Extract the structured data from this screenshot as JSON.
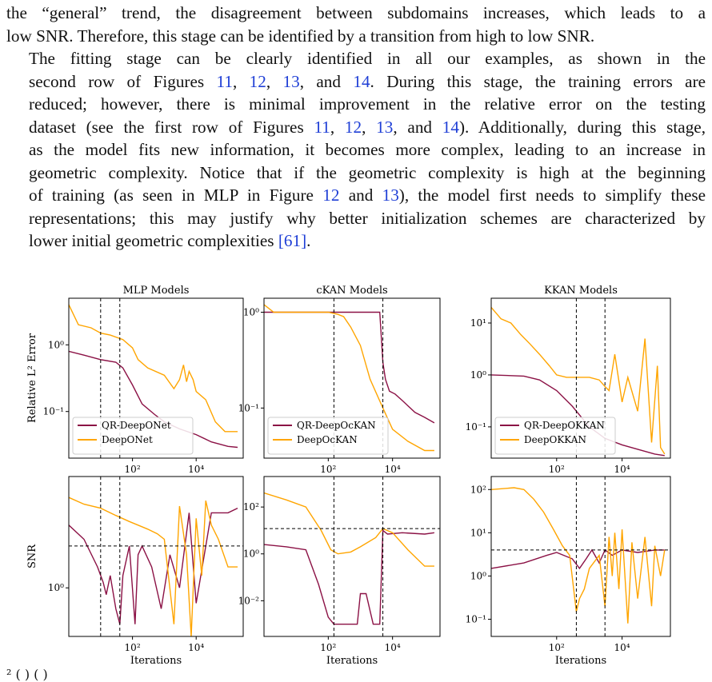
{
  "paragraph1": {
    "lines": [
      "the “general” trend, the disagreement between subdomains increases, which leads to a",
      "low SNR. Therefore, this stage can be identified by a transition from high to low SNR."
    ]
  },
  "paragraph2": {
    "l1": "The fitting stage can be clearly identified in all our examples, as shown in the",
    "l2a": "second row of Figures ",
    "r1": "11",
    "c1": ", ",
    "r2": "12",
    "c2": ", ",
    "r3": "13",
    "c3": ", and ",
    "r4": "14",
    "l2b": ". During this stage, the training errors are",
    "l3": "reduced; however, there is minimal improvement in the relative error on the testing",
    "l4a": "dataset (see the first row of Figures ",
    "r5": "11",
    "c4": ", ",
    "r6": "12",
    "c5": ", ",
    "r7": "13",
    "c6": ", and ",
    "r8": "14",
    "l4b": "). Additionally, during this stage,",
    "l5": "as the model fits new information, it becomes more complex, leading to an increase in",
    "l6": "geometric complexity. Notice that if the geometric complexity is high at the beginning",
    "l7a": "of training (as seen in MLP in Figure ",
    "r9": "12",
    "c7": " and  ",
    "r10": "13",
    "l7b": "), the model first needs to simplify these",
    "l8": "representations; this may justify why better initialization schemes are characterized by",
    "l9a": "lower initial geometric complexities ",
    "r11": "[61]",
    "l9b": "."
  },
  "caption": {
    "fragment": "²  (  )  (  )"
  },
  "colors": {
    "qr": "#8b1145",
    "plain": "#ffa500",
    "dash": "#000000"
  },
  "chart_data": [
    {
      "type": "line",
      "title": "MLP Models",
      "ylabel": "Relative L² Error",
      "xlabel": "",
      "xscale": "log",
      "yscale": "log",
      "xlim": [
        1,
        300000
      ],
      "ylim": [
        0.02,
        5
      ],
      "xticks": [
        "10²",
        "10⁴"
      ],
      "xtick_values": [
        100,
        10000
      ],
      "yticks": [
        "10⁰",
        "10⁻¹"
      ],
      "ytick_values": [
        1,
        0.1
      ],
      "vlines": [
        10,
        40
      ],
      "legend": "lower-left",
      "series": [
        {
          "name": "QR-DeepONet",
          "color": "#8b1145",
          "x": [
            1,
            3,
            10,
            30,
            50,
            100,
            200,
            500,
            1000,
            3000,
            10000,
            30000,
            100000,
            200000
          ],
          "y": [
            0.8,
            0.7,
            0.6,
            0.55,
            0.45,
            0.25,
            0.13,
            0.09,
            0.07,
            0.055,
            0.045,
            0.035,
            0.03,
            0.029
          ]
        },
        {
          "name": "DeepONet",
          "color": "#ffa500",
          "x": [
            1,
            2,
            5,
            10,
            20,
            50,
            100,
            150,
            300,
            1000,
            2000,
            3000,
            4000,
            5000,
            6000,
            8000,
            10000,
            20000,
            40000,
            80000,
            200000
          ],
          "y": [
            4,
            2,
            1.8,
            1.5,
            1.4,
            1.2,
            0.9,
            0.6,
            0.45,
            0.35,
            0.22,
            0.3,
            0.5,
            0.28,
            0.4,
            0.3,
            0.2,
            0.15,
            0.07,
            0.05,
            0.05
          ]
        }
      ]
    },
    {
      "type": "line",
      "title": "cKAN Models",
      "ylabel": "",
      "xlabel": "",
      "xscale": "log",
      "yscale": "log",
      "xlim": [
        1,
        300000
      ],
      "ylim": [
        0.03,
        1.4
      ],
      "xticks": [
        "10²",
        "10⁴"
      ],
      "xtick_values": [
        100,
        10000
      ],
      "yticks": [
        "10⁰",
        "10⁻¹"
      ],
      "ytick_values": [
        1,
        0.1
      ],
      "vlines": [
        150,
        5000
      ],
      "legend": "lower-left",
      "series": [
        {
          "name": "QR-DeepOcKAN",
          "color": "#8b1145",
          "x": [
            1,
            10,
            100,
            1000,
            4000,
            5000,
            6000,
            8000,
            12000,
            20000,
            50000,
            100000,
            200000
          ],
          "y": [
            1,
            1,
            1,
            1,
            1,
            0.3,
            0.2,
            0.15,
            0.14,
            0.12,
            0.09,
            0.08,
            0.07
          ]
        },
        {
          "name": "DeepOcKAN",
          "color": "#ffa500",
          "x": [
            1,
            2,
            5,
            20,
            100,
            200,
            300,
            500,
            1000,
            2000,
            5000,
            10000,
            30000,
            100000,
            200000
          ],
          "y": [
            1.2,
            1.0,
            1.0,
            1.0,
            1.0,
            0.95,
            0.9,
            0.7,
            0.45,
            0.2,
            0.1,
            0.06,
            0.045,
            0.036,
            0.036
          ]
        }
      ]
    },
    {
      "type": "line",
      "title": "KKAN Models",
      "ylabel": "",
      "xlabel": "",
      "xscale": "log",
      "yscale": "log",
      "xlim": [
        1,
        300000
      ],
      "ylim": [
        0.025,
        30
      ],
      "xticks": [
        "10²",
        "10⁴"
      ],
      "xtick_values": [
        100,
        10000
      ],
      "yticks": [
        "10¹",
        "10⁰",
        "10⁻¹"
      ],
      "ytick_values": [
        10,
        1,
        0.1
      ],
      "vlines": [
        400,
        3000
      ],
      "legend": "lower-left",
      "series": [
        {
          "name": "QR-DeepOKKAN",
          "color": "#8b1145",
          "x": [
            1,
            10,
            30,
            100,
            300,
            1000,
            3000,
            10000,
            30000,
            100000,
            200000
          ],
          "y": [
            1,
            0.95,
            0.8,
            0.5,
            0.25,
            0.1,
            0.06,
            0.045,
            0.037,
            0.03,
            0.028
          ]
        },
        {
          "name": "DeepOKKAN",
          "color": "#ffa500",
          "x": [
            1,
            2,
            4,
            8,
            15,
            30,
            60,
            100,
            200,
            400,
            1000,
            2000,
            3000,
            4000,
            6000,
            10000,
            15000,
            30000,
            50000,
            80000,
            120000,
            150000,
            200000
          ],
          "y": [
            20,
            12,
            10,
            6,
            4,
            2.5,
            1.5,
            1.0,
            0.9,
            0.9,
            0.9,
            0.8,
            0.6,
            0.5,
            2.5,
            0.3,
            0.9,
            0.2,
            5,
            0.05,
            1.5,
            0.04,
            0.03
          ]
        }
      ]
    },
    {
      "type": "line",
      "title": "",
      "ylabel": "SNR",
      "xlabel": "Iterations",
      "xscale": "log",
      "yscale": "log",
      "xlim": [
        1,
        300000
      ],
      "ylim": [
        0.2,
        40
      ],
      "xticks": [
        "10²",
        "10⁴"
      ],
      "xtick_values": [
        100,
        10000
      ],
      "yticks": [
        "10⁰"
      ],
      "ytick_values": [
        1
      ],
      "vlines": [
        10,
        40
      ],
      "hlines": [
        4
      ],
      "series": [
        {
          "name": "",
          "color": "#8b1145",
          "x": [
            1,
            3,
            8,
            12,
            15,
            20,
            30,
            40,
            50,
            80,
            120,
            150,
            200,
            400,
            800,
            1500,
            3000,
            6000,
            10000,
            30000,
            100000,
            200000
          ],
          "y": [
            8,
            5,
            2,
            1.2,
            0.8,
            1.5,
            0.5,
            0.3,
            1.5,
            4,
            0.3,
            3,
            4,
            2,
            0.5,
            3,
            1,
            12,
            0.6,
            12,
            12,
            14
          ]
        },
        {
          "name": "",
          "color": "#ffa500",
          "x": [
            1,
            3,
            10,
            30,
            80,
            150,
            300,
            600,
            1000,
            2000,
            3000,
            5000,
            7000,
            10000,
            15000,
            20000,
            30000,
            50000,
            100000,
            200000
          ],
          "y": [
            20,
            16,
            14,
            11,
            9,
            8,
            7,
            6,
            5,
            0.3,
            15,
            3,
            0.2,
            10,
            1.5,
            18,
            8,
            5,
            2,
            2
          ]
        }
      ]
    },
    {
      "type": "line",
      "title": "",
      "ylabel": "",
      "xlabel": "Iterations",
      "xscale": "log",
      "yscale": "log",
      "xlim": [
        1,
        300000
      ],
      "ylim": [
        0.0003,
        2000
      ],
      "xticks": [
        "10²",
        "10⁴"
      ],
      "xtick_values": [
        100,
        10000
      ],
      "yticks": [
        "10²",
        "10⁰",
        "10⁻²"
      ],
      "ytick_values": [
        100,
        1,
        0.01
      ],
      "vlines": [
        150,
        5000
      ],
      "hlines": [
        12
      ],
      "series": [
        {
          "name": "",
          "color": "#8b1145",
          "x": [
            1,
            5,
            20,
            50,
            100,
            150,
            200,
            400,
            800,
            1000,
            1500,
            2500,
            4000,
            5000,
            7000,
            20000,
            100000,
            200000
          ],
          "y": [
            2.5,
            2,
            1.5,
            0.05,
            0.002,
            0.001,
            0.001,
            0.001,
            0.001,
            0.02,
            0.02,
            0.001,
            0.001,
            10,
            7,
            8,
            7,
            8
          ]
        },
        {
          "name": "",
          "color": "#ffa500",
          "x": [
            1,
            5,
            20,
            60,
            120,
            200,
            500,
            1000,
            3000,
            5000,
            10000,
            30000,
            100000,
            200000
          ],
          "y": [
            400,
            200,
            100,
            10,
            1.5,
            1,
            1.2,
            2,
            5,
            12,
            8,
            1.5,
            0.3,
            0.3
          ]
        }
      ]
    },
    {
      "type": "line",
      "title": "",
      "ylabel": "",
      "xlabel": "Iterations",
      "xscale": "log",
      "yscale": "log",
      "xlim": [
        1,
        300000
      ],
      "ylim": [
        0.04,
        200
      ],
      "xticks": [
        "10²",
        "10⁴"
      ],
      "xtick_values": [
        100,
        10000
      ],
      "yticks": [
        "10²",
        "10¹",
        "10⁰",
        "10⁻¹"
      ],
      "ytick_values": [
        100,
        10,
        1,
        0.1
      ],
      "vlines": [
        400,
        3000
      ],
      "hlines": [
        4
      ],
      "series": [
        {
          "name": "",
          "color": "#8b1145",
          "x": [
            1,
            10,
            50,
            100,
            300,
            500,
            800,
            1200,
            2000,
            3000,
            5000,
            10000,
            30000,
            100000,
            200000
          ],
          "y": [
            1.5,
            2,
            3,
            3.5,
            2.5,
            1.5,
            2.5,
            4,
            2,
            4,
            3,
            4,
            3.5,
            4,
            4
          ]
        },
        {
          "name": "",
          "color": "#ffa500",
          "x": [
            1,
            5,
            10,
            20,
            40,
            80,
            150,
            250,
            400,
            500,
            700,
            1000,
            2000,
            3000,
            4000,
            5000,
            6000,
            8000,
            10000,
            15000,
            20000,
            30000,
            50000,
            80000,
            100000,
            150000,
            200000
          ],
          "y": [
            100,
            110,
            100,
            60,
            30,
            12,
            5,
            3,
            0.15,
            0.3,
            0.5,
            1.5,
            3,
            0.2,
            8,
            1,
            10,
            0.5,
            12,
            0.08,
            6,
            0.3,
            8,
            0.2,
            5,
            1,
            4
          ]
        }
      ]
    }
  ]
}
